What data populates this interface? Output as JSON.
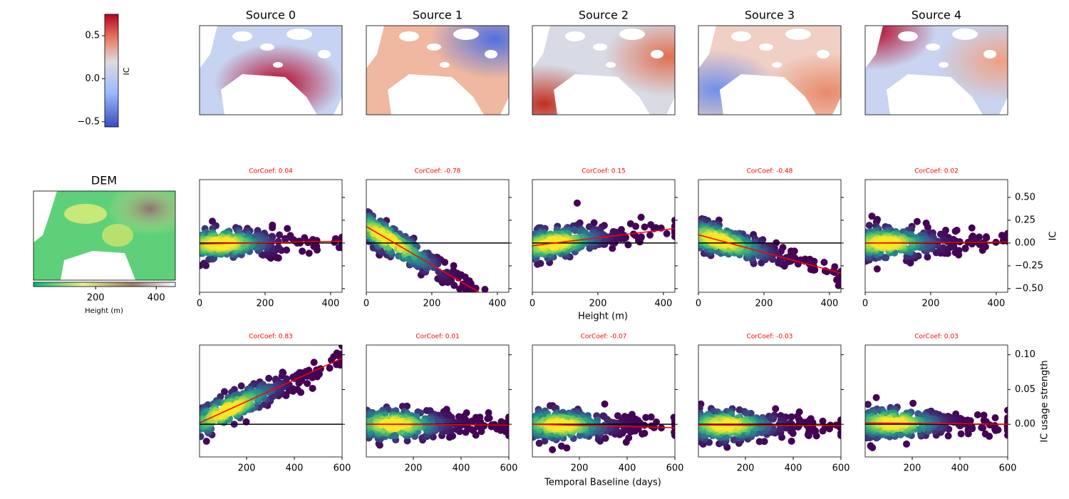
{
  "chart_data": [
    {
      "type": "map",
      "titles": [
        "Source 0",
        "Source 1",
        "Source 2",
        "Source 3",
        "Source 4"
      ]
    },
    {
      "type": "colorbar",
      "label": "IC",
      "ylim": [
        -0.56,
        0.75
      ],
      "yticks": [
        {
          "value": -0.5,
          "label": "−0.5"
        },
        {
          "value": 0,
          "label": "0.0"
        },
        {
          "value": 0.5,
          "label": "0.5"
        }
      ]
    },
    {
      "type": "map",
      "title": "DEM",
      "xlabel": "Height (m)",
      "xlim": [
        -5,
        463
      ],
      "xticks": [
        200,
        400
      ]
    },
    {
      "type": "scatter",
      "xlabel": "Height (m)",
      "ylabel": "IC",
      "xlim": [
        0,
        435
      ],
      "xticks": [
        0,
        200,
        400
      ],
      "ylim": [
        -0.54,
        0.695
      ],
      "yticks": [
        {
          "value": -0.5,
          "label": "−0.50"
        },
        {
          "value": -0.25,
          "label": "−0.25"
        },
        {
          "value": 0,
          "label": "0.00"
        },
        {
          "value": 0.25,
          "label": "0.25"
        },
        {
          "value": 0.5,
          "label": "0.50"
        }
      ],
      "panels": [
        {
          "title": "CorCoef: 0.04",
          "fit": [
            -0.01,
            0.02
          ]
        },
        {
          "title": "CorCoef: -0.78",
          "fit": [
            0.18,
            -0.73
          ]
        },
        {
          "title": "CorCoef: 0.15",
          "fit": [
            -0.03,
            0.16
          ]
        },
        {
          "title": "CorCoef: -0.48",
          "fit": [
            0.09,
            -0.33
          ]
        },
        {
          "title": "CorCoef: 0.02",
          "fit": [
            0.0,
            0.01
          ]
        }
      ]
    },
    {
      "type": "scatter",
      "xlabel": "Temporal Baseline (days)",
      "ylabel": "IC usage strength",
      "xlim": [
        3,
        600
      ],
      "xticks": [
        200,
        400,
        600
      ],
      "ylim": [
        -0.047,
        0.114
      ],
      "yticks": [
        {
          "value": 0,
          "label": "0.00"
        },
        {
          "value": 0.05,
          "label": "0.05"
        },
        {
          "value": 0.1,
          "label": "0.10"
        }
      ],
      "panels": [
        {
          "title": "CorCoef: 0.83",
          "fit": [
            0.002,
            0.095
          ]
        },
        {
          "title": "CorCoef: 0.01",
          "fit": [
            0.0,
            -0.001
          ]
        },
        {
          "title": "CorCoef: -0.07",
          "fit": [
            0.0,
            -0.005
          ]
        },
        {
          "title": "CorCoef: -0.03",
          "fit": [
            -0.001,
            -0.002
          ]
        },
        {
          "title": "CorCoef: 0.03",
          "fit": [
            0.002,
            0.0
          ]
        }
      ]
    }
  ]
}
